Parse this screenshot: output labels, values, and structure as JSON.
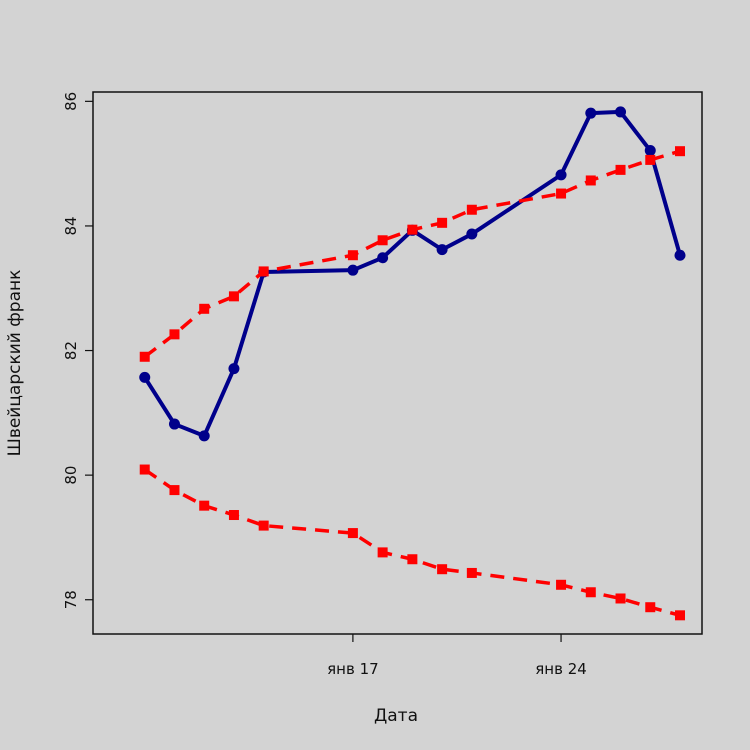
{
  "chart_data": {
    "type": "line",
    "title": "",
    "xlabel": "Дата",
    "ylabel": "Швейцарский франк",
    "x_tick_labels": [
      {
        "date": "2019-01-17",
        "label": "янв 17"
      },
      {
        "date": "2019-01-24",
        "label": "янв 24"
      }
    ],
    "y_ticks": [
      78,
      80,
      82,
      84,
      86
    ],
    "ylim": [
      77.45,
      86.15
    ],
    "xlim": [
      "2019-01-09",
      "2019-01-28"
    ],
    "grid": false,
    "legend": "none",
    "x": [
      "2019-01-10",
      "2019-01-11",
      "2019-01-12",
      "2019-01-13",
      "2019-01-14",
      "2019-01-17",
      "2019-01-18",
      "2019-01-19",
      "2019-01-20",
      "2019-01-21",
      "2019-01-24",
      "2019-01-25",
      "2019-01-26",
      "2019-01-27",
      "2019-01-28"
    ],
    "series": [
      {
        "color": "#00008b",
        "style": "solid",
        "marker": "circle",
        "values": [
          81.57,
          80.82,
          80.63,
          81.71,
          83.26,
          83.29,
          83.49,
          83.93,
          83.62,
          83.87,
          84.82,
          85.81,
          85.83,
          85.21,
          83.53
        ]
      },
      {
        "color": "#ff0000",
        "style": "dashed",
        "marker": "square",
        "values": [
          81.9,
          82.26,
          82.67,
          82.87,
          83.27,
          83.53,
          83.77,
          83.94,
          84.05,
          84.26,
          84.52,
          84.73,
          84.9,
          85.06,
          85.2
        ]
      },
      {
        "color": "#ff0000",
        "style": "dashed",
        "marker": "square",
        "values": [
          80.09,
          79.76,
          79.51,
          79.36,
          79.19,
          79.07,
          78.76,
          78.65,
          78.49,
          78.43,
          78.24,
          78.12,
          78.02,
          77.88,
          77.75
        ]
      }
    ]
  }
}
